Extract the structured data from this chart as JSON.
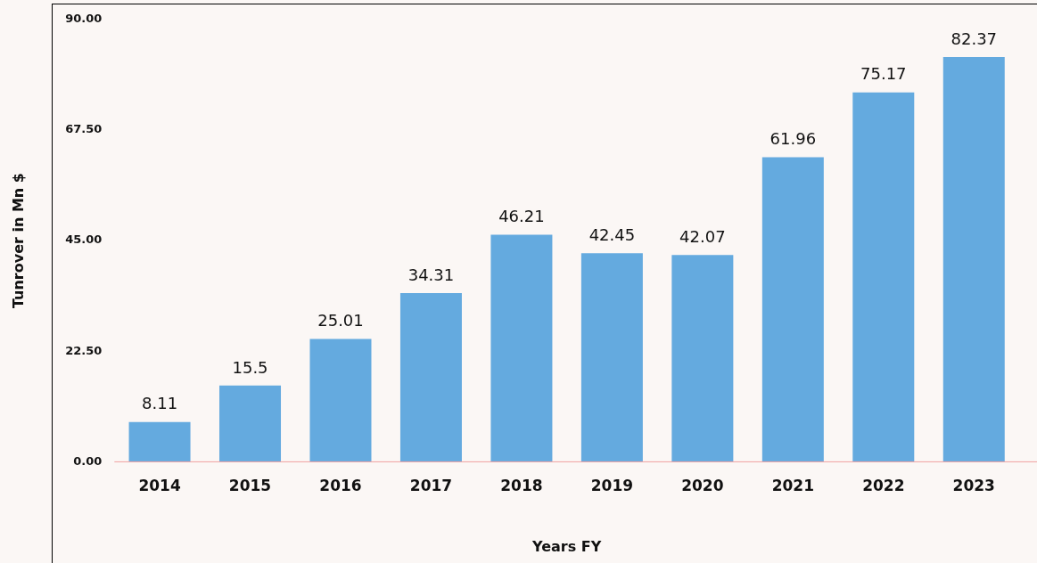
{
  "chart_data": {
    "type": "bar",
    "xlabel": "Years FY",
    "ylabel": "Tunrover in Mn $",
    "categories": [
      "2014",
      "2015",
      "2016",
      "2017",
      "2018",
      "2019",
      "2020",
      "2021",
      "2022",
      "2023"
    ],
    "values": [
      8.11,
      15.5,
      25.01,
      34.31,
      46.21,
      42.45,
      42.07,
      61.96,
      75.17,
      82.37
    ],
    "color": "#64aadf",
    "ylim": [
      0,
      90
    ],
    "yticks": [
      {
        "value": 0,
        "label": "0.00"
      },
      {
        "value": 22.5,
        "label": "22.50"
      },
      {
        "value": 45,
        "label": "45.00"
      },
      {
        "value": 67.5,
        "label": "67.50"
      },
      {
        "value": 90,
        "label": "90.00"
      }
    ],
    "grid": false,
    "legend": false,
    "data_labels": true
  }
}
